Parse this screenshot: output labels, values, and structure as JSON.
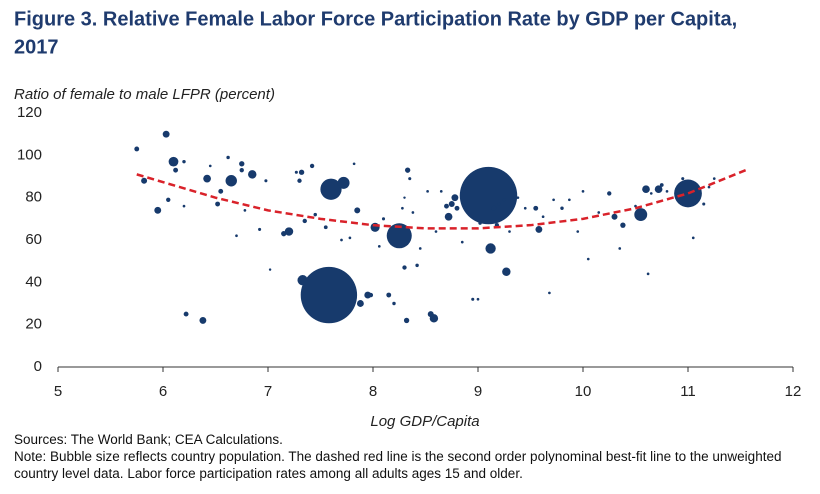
{
  "chart_data": {
    "type": "bubble",
    "title": "Figure 3. Relative Female Labor Force Participation Rate by GDP per Capita,",
    "title_line2": "2017",
    "y_label": "Ratio of female to male LFPR (percent)",
    "x_label": "Log GDP/Capita",
    "sources": "Sources: The World Bank; CEA Calculations.",
    "note": "Note: Bubble size reflects country population. The dashed red line is the second order polynominal best-fit line to the unweighted country level data. Labor force participation rates among all adults ages 15 and older.",
    "color": "#173a6c",
    "x": [
      5.75,
      5.82,
      5.95,
      6.03,
      6.05,
      6.1,
      6.12,
      6.2,
      6.22,
      6.2,
      6.38,
      6.42,
      6.45,
      6.52,
      6.55,
      6.62,
      6.65,
      6.7,
      6.75,
      6.75,
      6.78,
      6.85,
      6.92,
      6.98,
      7.02,
      7.15,
      7.2,
      7.27,
      7.3,
      7.32,
      7.33,
      7.35,
      7.38,
      7.42,
      7.45,
      7.55,
      7.58,
      7.6,
      7.7,
      7.72,
      7.78,
      7.82,
      7.85,
      7.88,
      7.95,
      7.98,
      8.0,
      8.02,
      8.06,
      8.1,
      8.15,
      8.2,
      8.22,
      8.25,
      8.28,
      8.3,
      8.3,
      8.32,
      8.33,
      8.35,
      8.38,
      8.42,
      8.45,
      8.52,
      8.55,
      8.58,
      8.6,
      8.65,
      8.7,
      8.72,
      8.75,
      8.78,
      8.8,
      8.85,
      8.9,
      8.95,
      8.97,
      9.0,
      9.02,
      9.05,
      9.1,
      9.12,
      9.15,
      9.18,
      9.2,
      9.25,
      9.27,
      9.3,
      9.38,
      9.45,
      9.55,
      9.58,
      9.62,
      9.68,
      9.72,
      9.8,
      9.87,
      9.95,
      10.0,
      10.05,
      10.15,
      10.25,
      10.3,
      10.35,
      10.38,
      10.5,
      10.55,
      10.6,
      10.62,
      10.65,
      10.72,
      10.75,
      10.8,
      10.95,
      11.0,
      11.05,
      11.08,
      11.15,
      11.2,
      11.25
    ],
    "values": [
      103,
      88,
      74,
      110,
      79,
      97,
      93,
      97,
      25,
      76,
      22,
      89,
      95,
      77,
      83,
      99,
      88,
      62,
      96,
      93,
      74,
      91,
      65,
      88,
      46,
      63,
      64,
      92,
      88,
      92,
      41,
      69,
      31,
      95,
      72,
      66,
      34,
      84,
      60,
      87,
      61,
      96,
      74,
      30,
      34,
      34,
      65,
      66,
      57,
      70,
      34,
      30,
      62,
      62,
      75,
      80,
      47,
      22,
      93,
      89,
      73,
      48,
      56,
      83,
      25,
      23,
      64,
      83,
      76,
      71,
      77,
      80,
      75,
      59,
      74,
      32,
      73,
      32,
      68,
      84,
      81,
      56,
      75,
      67,
      77,
      79,
      45,
      64,
      80,
      75,
      75,
      65,
      71,
      35,
      79,
      75,
      79,
      64,
      83,
      51,
      73,
      82,
      71,
      56,
      67,
      76,
      72,
      84,
      44,
      82,
      84,
      86,
      83,
      89,
      82,
      61,
      80,
      77,
      85,
      89
    ],
    "sizes": [
      10,
      15,
      20,
      20,
      8,
      40,
      10,
      5,
      10,
      3,
      20,
      25,
      3,
      10,
      10,
      5,
      55,
      3,
      12,
      8,
      3,
      30,
      4,
      4,
      2,
      12,
      30,
      4,
      8,
      12,
      45,
      8,
      50,
      8,
      5,
      6,
      1340,
      190,
      3,
      60,
      3,
      3,
      15,
      20,
      20,
      8,
      4,
      35,
      3,
      4,
      10,
      5,
      8,
      264,
      3,
      2,
      8,
      12,
      12,
      4,
      3,
      5,
      3,
      3,
      15,
      30,
      3,
      3,
      10,
      25,
      15,
      20,
      10,
      3,
      4,
      4,
      4,
      3,
      5,
      6,
      1390,
      45,
      10,
      8,
      5,
      4,
      30,
      3,
      3,
      3,
      10,
      20,
      3,
      3,
      3,
      5,
      3,
      3,
      3,
      3,
      3,
      8,
      15,
      3,
      12,
      3,
      70,
      25,
      3,
      3,
      25,
      6,
      3,
      4,
      325,
      3,
      3,
      4,
      3,
      3
    ],
    "fit": {
      "color": "#d9222a",
      "x": [
        5.75,
        6.5,
        7,
        7.5,
        8,
        8.5,
        9,
        9.5,
        10,
        10.5,
        11,
        11.55
      ],
      "values": [
        91,
        80,
        74,
        70,
        67,
        65.5,
        65.5,
        67,
        70,
        75,
        82,
        93
      ]
    },
    "xlim": [
      5,
      12
    ],
    "xticks": [
      5,
      6,
      7,
      8,
      9,
      10,
      11,
      12
    ],
    "ylim": [
      0,
      120
    ],
    "yticks": [
      0,
      20,
      40,
      60,
      80,
      100,
      120
    ]
  }
}
